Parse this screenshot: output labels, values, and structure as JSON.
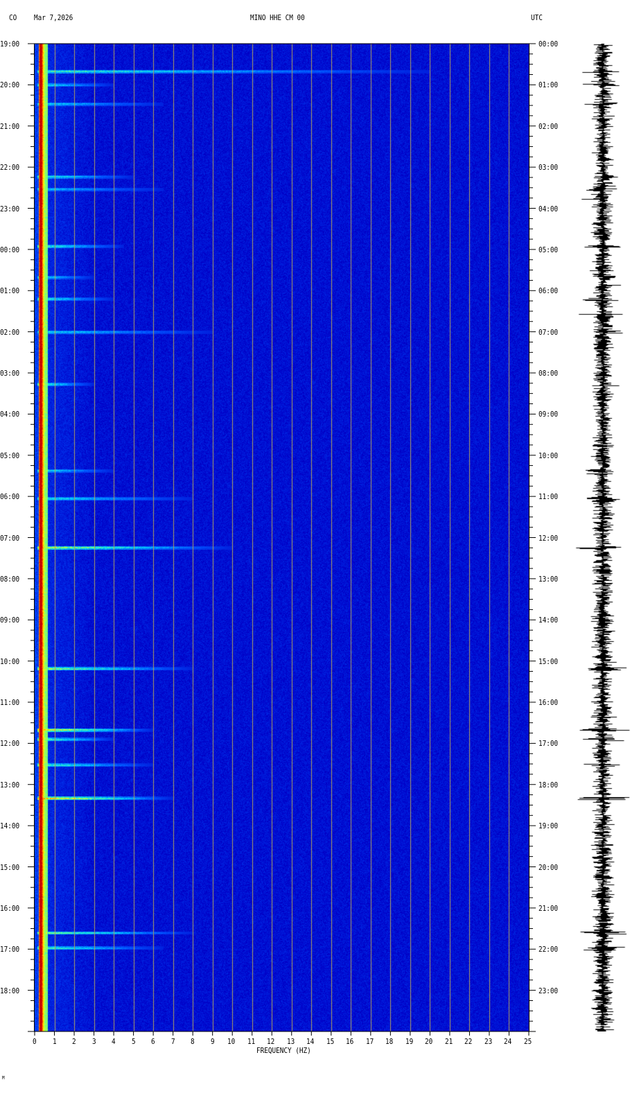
{
  "header": {
    "network": "CO",
    "date": "Mar 7,2026",
    "station": "MINO HHE CM 00",
    "timezone": "UTC"
  },
  "footer_mark": "M",
  "chart_data": {
    "type": "heatmap",
    "xlabel": "FREQUENCY (HZ)",
    "xlim": [
      0,
      25
    ],
    "x_ticks": [
      "0",
      "1",
      "2",
      "3",
      "4",
      "5",
      "6",
      "7",
      "8",
      "9",
      "10",
      "11",
      "12",
      "13",
      "14",
      "15",
      "16",
      "17",
      "18",
      "19",
      "20",
      "21",
      "22",
      "23",
      "24",
      "25"
    ],
    "left_time_labels": [
      "19:00",
      "20:00",
      "21:00",
      "22:00",
      "23:00",
      "00:00",
      "01:00",
      "02:00",
      "03:00",
      "04:00",
      "05:00",
      "06:00",
      "07:00",
      "08:00",
      "09:00",
      "10:00",
      "11:00",
      "12:00",
      "13:00",
      "14:00",
      "15:00",
      "16:00",
      "17:00",
      "18:00"
    ],
    "right_time_labels": [
      "00:00",
      "01:00",
      "02:00",
      "03:00",
      "04:00",
      "05:00",
      "06:00",
      "07:00",
      "08:00",
      "09:00",
      "10:00",
      "11:00",
      "12:00",
      "13:00",
      "14:00",
      "15:00",
      "16:00",
      "17:00",
      "18:00",
      "19:00",
      "20:00",
      "21:00",
      "22:00",
      "23:00"
    ],
    "ylim_hours_utc": [
      0,
      24
    ],
    "gridlines": "vertical every 1 Hz",
    "colormap": [
      "#00008c",
      "#0000c8",
      "#0050ff",
      "#00d0ff",
      "#60ff90",
      "#ffff00",
      "#ff8000",
      "#c80000"
    ],
    "background_color": "#0000a8",
    "grid_color": "#b0a060",
    "low_frequency_band_hz": [
      0.2,
      0.6
    ],
    "events": [
      {
        "utc_hour": 0.67,
        "max_freq_hz": 20,
        "intensity": 0.55
      },
      {
        "utc_hour": 1.0,
        "max_freq_hz": 4,
        "intensity": 0.5
      },
      {
        "utc_hour": 1.46,
        "max_freq_hz": 6.5,
        "intensity": 0.45
      },
      {
        "utc_hour": 3.23,
        "max_freq_hz": 5,
        "intensity": 0.55
      },
      {
        "utc_hour": 3.53,
        "max_freq_hz": 6.5,
        "intensity": 0.4
      },
      {
        "utc_hour": 4.92,
        "max_freq_hz": 4.5,
        "intensity": 0.55
      },
      {
        "utc_hour": 5.67,
        "max_freq_hz": 3,
        "intensity": 0.5
      },
      {
        "utc_hour": 6.2,
        "max_freq_hz": 4,
        "intensity": 0.5
      },
      {
        "utc_hour": 7.0,
        "max_freq_hz": 9,
        "intensity": 0.45
      },
      {
        "utc_hour": 8.27,
        "max_freq_hz": 3,
        "intensity": 0.55
      },
      {
        "utc_hour": 10.37,
        "max_freq_hz": 4,
        "intensity": 0.5
      },
      {
        "utc_hour": 11.05,
        "max_freq_hz": 8,
        "intensity": 0.45
      },
      {
        "utc_hour": 12.24,
        "max_freq_hz": 10,
        "intensity": 0.8
      },
      {
        "utc_hour": 15.18,
        "max_freq_hz": 8,
        "intensity": 0.75
      },
      {
        "utc_hour": 16.67,
        "max_freq_hz": 6,
        "intensity": 0.95
      },
      {
        "utc_hour": 16.9,
        "max_freq_hz": 4,
        "intensity": 0.7
      },
      {
        "utc_hour": 17.52,
        "max_freq_hz": 6,
        "intensity": 0.6
      },
      {
        "utc_hour": 18.33,
        "max_freq_hz": 7,
        "intensity": 1.0
      },
      {
        "utc_hour": 21.6,
        "max_freq_hz": 8,
        "intensity": 0.7
      },
      {
        "utc_hour": 21.97,
        "max_freq_hz": 6.5,
        "intensity": 0.6
      }
    ]
  }
}
